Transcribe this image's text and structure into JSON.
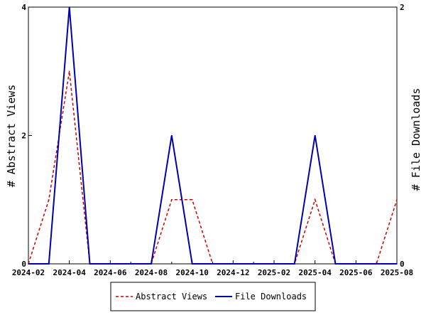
{
  "chart_data": {
    "type": "line",
    "x": [
      "2024-02",
      "2024-03",
      "2024-04",
      "2024-05",
      "2024-06",
      "2024-07",
      "2024-08",
      "2024-09",
      "2024-10",
      "2024-11",
      "2024-12",
      "2025-01",
      "2025-02",
      "2025-03",
      "2025-04",
      "2025-05",
      "2025-06",
      "2025-07",
      "2025-08"
    ],
    "x_tick_labels": [
      "2024-02",
      "2024-04",
      "2024-06",
      "2024-08",
      "2024-10",
      "2024-12",
      "2025-02",
      "2025-04",
      "2025-06",
      "2025-08"
    ],
    "ylabel_left": "# Abstract Views",
    "ylabel_right": "# File Downloads",
    "ylim_left": [
      0,
      4
    ],
    "ylim_right": [
      0,
      2
    ],
    "y_ticks_left": [
      "0",
      "2",
      "4"
    ],
    "y_ticks_right": [
      "0",
      "2"
    ],
    "grid": false,
    "legend_position": "bottom",
    "series": [
      {
        "name": "Abstract Views",
        "axis": "left",
        "color": "#cc0000",
        "dash": "dashed",
        "values": [
          0,
          1,
          3,
          0,
          0,
          0,
          0,
          1,
          1,
          0,
          0,
          0,
          0,
          0,
          1,
          0,
          0,
          0,
          1
        ]
      },
      {
        "name": "File Downloads",
        "axis": "right",
        "color": "#0000aa",
        "dash": "solid",
        "values": [
          0,
          0,
          2,
          0,
          0,
          0,
          0,
          1,
          0,
          0,
          0,
          0,
          0,
          0,
          1,
          0,
          0,
          0,
          0
        ]
      }
    ]
  }
}
